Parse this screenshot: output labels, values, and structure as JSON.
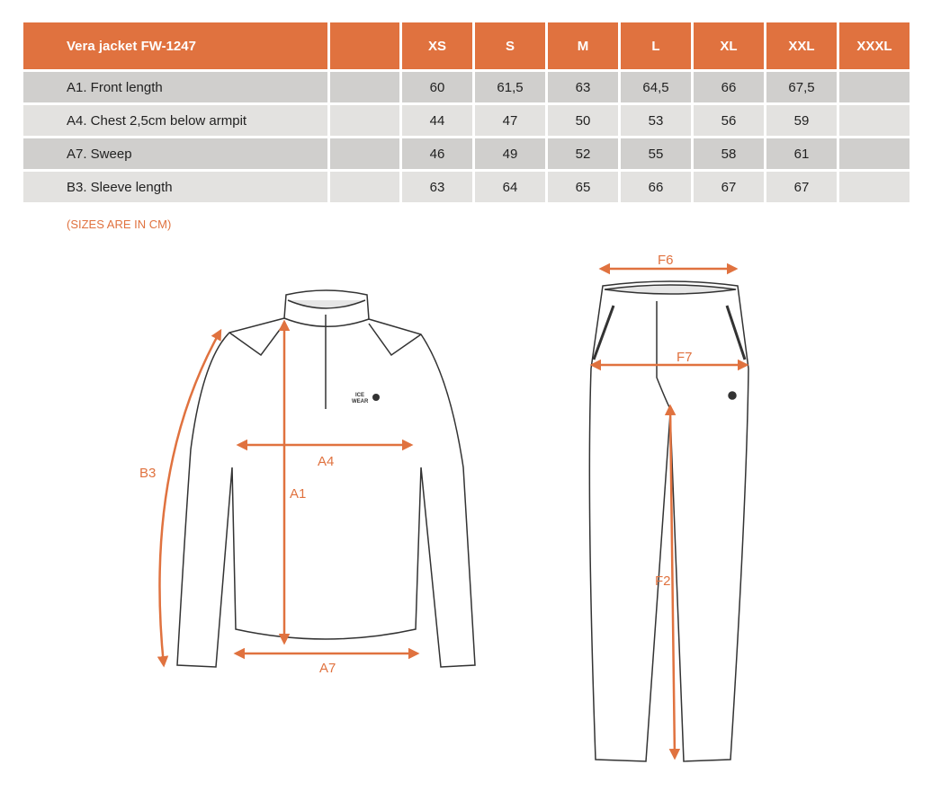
{
  "table": {
    "title": "Vera jacket FW-1247",
    "sizes": [
      "XS",
      "S",
      "M",
      "L",
      "XL",
      "XXL",
      "XXXL"
    ],
    "rows": [
      {
        "label": "A1. Front length",
        "values": [
          "60",
          "61,5",
          "63",
          "64,5",
          "66",
          "67,5",
          ""
        ]
      },
      {
        "label": "A4. Chest 2,5cm below armpit",
        "values": [
          "44",
          "47",
          "50",
          "53",
          "56",
          "59",
          ""
        ]
      },
      {
        "label": "A7. Sweep",
        "values": [
          "46",
          "49",
          "52",
          "55",
          "58",
          "61",
          ""
        ]
      },
      {
        "label": "B3. Sleeve length",
        "values": [
          "63",
          "64",
          "65",
          "66",
          "67",
          "67",
          ""
        ]
      }
    ]
  },
  "note": "(SIZES ARE IN CM)",
  "diagram": {
    "jacket_labels": [
      "B3",
      "A4",
      "A1",
      "A7"
    ],
    "pants_labels": [
      "F6",
      "F7",
      "F2"
    ],
    "logo": "ICE WEAR",
    "accent": "#E0723F"
  }
}
